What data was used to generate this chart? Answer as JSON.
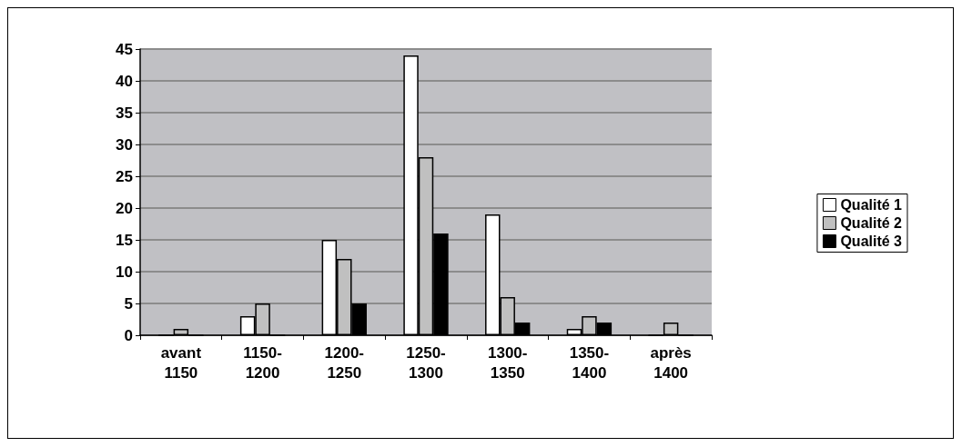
{
  "chart_data": {
    "type": "bar",
    "categories": [
      "avant\n1150",
      "1150-\n1200",
      "1200-\n1250",
      "1250-\n1300",
      "1300-\n1350",
      "1350-\n1400",
      "après\n1400"
    ],
    "series": [
      {
        "name": "Qualité 1",
        "color": "#ffffff",
        "values": [
          0,
          3,
          15,
          44,
          19,
          1,
          0
        ]
      },
      {
        "name": "Qualité 2",
        "color": "#c0c0c0",
        "values": [
          1,
          5,
          12,
          28,
          6,
          3,
          2
        ]
      },
      {
        "name": "Qualité 3",
        "color": "#000000",
        "values": [
          0,
          0,
          5,
          16,
          2,
          2,
          0
        ]
      }
    ],
    "ylim": [
      0,
      45
    ],
    "yticks": [
      0,
      5,
      10,
      15,
      20,
      25,
      30,
      35,
      40,
      45
    ],
    "grid": "y",
    "legend": "right"
  }
}
